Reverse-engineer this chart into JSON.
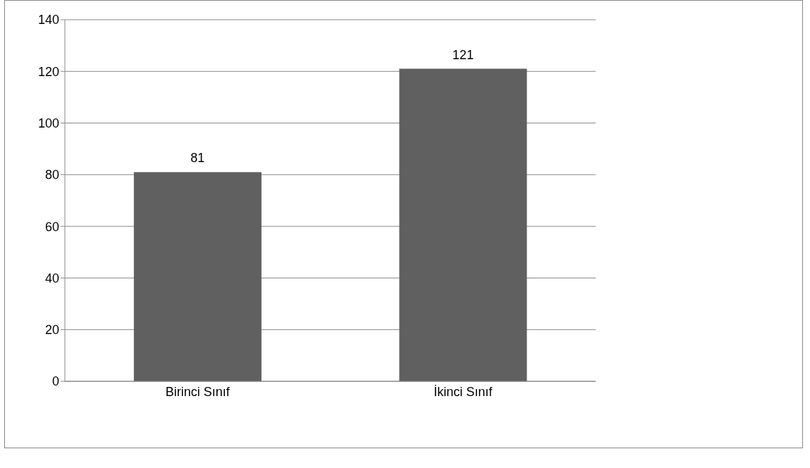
{
  "chart_data": {
    "type": "bar",
    "categories": [
      "Birinci Sınıf",
      "İkinci Sınıf"
    ],
    "values": [
      81,
      121
    ],
    "color": "#606060",
    "ylim": [
      0,
      140
    ],
    "yticks": [
      0,
      20,
      40,
      60,
      80,
      100,
      120,
      140
    ],
    "grid": "y",
    "data_labels": true
  }
}
